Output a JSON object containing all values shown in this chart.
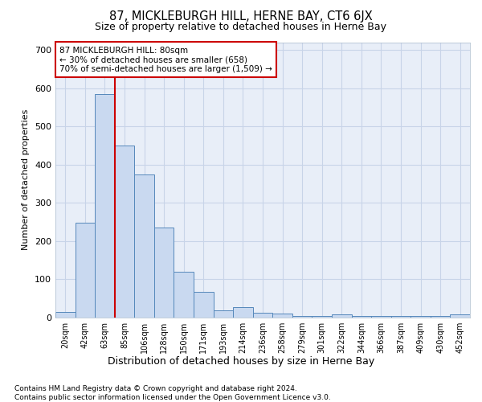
{
  "title": "87, MICKLEBURGH HILL, HERNE BAY, CT6 6JX",
  "subtitle": "Size of property relative to detached houses in Herne Bay",
  "xlabel": "Distribution of detached houses by size in Herne Bay",
  "ylabel": "Number of detached properties",
  "bar_labels": [
    "20sqm",
    "42sqm",
    "63sqm",
    "85sqm",
    "106sqm",
    "128sqm",
    "150sqm",
    "171sqm",
    "193sqm",
    "214sqm",
    "236sqm",
    "258sqm",
    "279sqm",
    "301sqm",
    "322sqm",
    "344sqm",
    "366sqm",
    "387sqm",
    "409sqm",
    "430sqm",
    "452sqm"
  ],
  "bar_values": [
    15,
    248,
    585,
    450,
    375,
    235,
    120,
    68,
    18,
    28,
    12,
    10,
    5,
    5,
    8,
    5,
    5,
    5,
    5,
    5,
    8
  ],
  "bar_color": "#c9d9f0",
  "bar_edge_color": "#5588bb",
  "ylim": [
    0,
    720
  ],
  "yticks": [
    0,
    100,
    200,
    300,
    400,
    500,
    600,
    700
  ],
  "red_line_color": "#cc0000",
  "red_line_index": 2.5,
  "annotation_title": "87 MICKLEBURGH HILL: 80sqm",
  "annotation_line1": "← 30% of detached houses are smaller (658)",
  "annotation_line2": "70% of semi-detached houses are larger (1,509) →",
  "annotation_box_color": "#ffffff",
  "annotation_box_edge": "#cc0000",
  "grid_color": "#c8d4e8",
  "bg_color": "#e8eef8",
  "footer1": "Contains HM Land Registry data © Crown copyright and database right 2024.",
  "footer2": "Contains public sector information licensed under the Open Government Licence v3.0."
}
